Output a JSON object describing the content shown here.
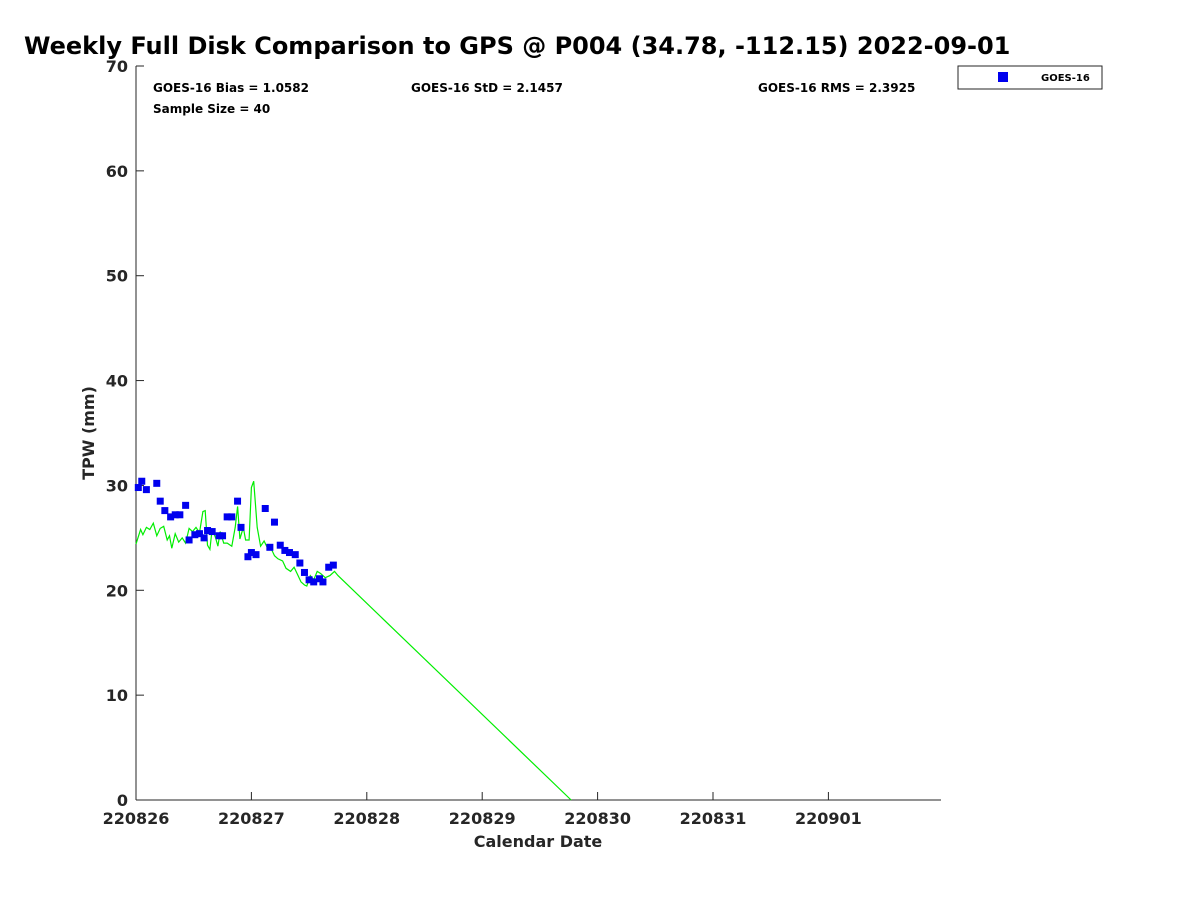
{
  "chart_data": {
    "type": "scatter",
    "title": "Weekly Full Disk Comparison to GPS @ P004 (34.78, -112.15) 2022-09-01",
    "xlabel": "Calendar Date",
    "ylabel": "TPW (mm)",
    "x_unit": "days",
    "xlim": [
      0,
      7
    ],
    "ylim": [
      0,
      70
    ],
    "x_ticks": [
      {
        "value": 0,
        "label": "220826"
      },
      {
        "value": 1,
        "label": "220827"
      },
      {
        "value": 2,
        "label": "220828"
      },
      {
        "value": 3,
        "label": "220829"
      },
      {
        "value": 4,
        "label": "220830"
      },
      {
        "value": 5,
        "label": "220831"
      },
      {
        "value": 6,
        "label": "220901"
      }
    ],
    "y_ticks": [
      0,
      10,
      20,
      30,
      40,
      50,
      60,
      70
    ],
    "grid": false,
    "legend_position": "top-right, outside plot",
    "stats": {
      "bias": "GOES-16 Bias = 1.0582",
      "std": "GOES-16 StD = 2.1457",
      "rms": "GOES-16 RMS = 2.3925",
      "sample": "Sample Size = 40"
    },
    "series": [
      {
        "name": "GOES-16",
        "kind": "scatter",
        "marker": "square",
        "color": "#0000ee",
        "points": [
          [
            0.02,
            29.8
          ],
          [
            0.05,
            30.4
          ],
          [
            0.09,
            29.6
          ],
          [
            0.18,
            30.2
          ],
          [
            0.21,
            28.5
          ],
          [
            0.25,
            27.6
          ],
          [
            0.3,
            27.0
          ],
          [
            0.34,
            27.2
          ],
          [
            0.38,
            27.2
          ],
          [
            0.43,
            28.1
          ],
          [
            0.46,
            24.8
          ],
          [
            0.51,
            25.3
          ],
          [
            0.55,
            25.4
          ],
          [
            0.59,
            25.0
          ],
          [
            0.62,
            25.7
          ],
          [
            0.66,
            25.6
          ],
          [
            0.72,
            25.2
          ],
          [
            0.75,
            25.2
          ],
          [
            0.79,
            27.0
          ],
          [
            0.83,
            27.0
          ],
          [
            0.88,
            28.5
          ],
          [
            0.91,
            26.0
          ],
          [
            0.97,
            23.2
          ],
          [
            1.0,
            23.6
          ],
          [
            1.04,
            23.4
          ],
          [
            1.12,
            27.8
          ],
          [
            1.16,
            24.1
          ],
          [
            1.2,
            26.5
          ],
          [
            1.25,
            24.3
          ],
          [
            1.29,
            23.8
          ],
          [
            1.33,
            23.6
          ],
          [
            1.38,
            23.4
          ],
          [
            1.42,
            22.6
          ],
          [
            1.46,
            21.7
          ],
          [
            1.5,
            21.0
          ],
          [
            1.54,
            20.8
          ],
          [
            1.59,
            21.1
          ],
          [
            1.62,
            20.8
          ],
          [
            1.67,
            22.2
          ],
          [
            1.71,
            22.4
          ]
        ]
      },
      {
        "kind": "line",
        "color": "#00ee00",
        "points": [
          [
            0.0,
            24.4
          ],
          [
            0.04,
            25.8
          ],
          [
            0.06,
            25.3
          ],
          [
            0.09,
            26.0
          ],
          [
            0.12,
            25.8
          ],
          [
            0.15,
            26.4
          ],
          [
            0.18,
            25.2
          ],
          [
            0.21,
            25.9
          ],
          [
            0.24,
            26.1
          ],
          [
            0.27,
            24.8
          ],
          [
            0.29,
            25.2
          ],
          [
            0.31,
            24.0
          ],
          [
            0.34,
            25.4
          ],
          [
            0.37,
            24.6
          ],
          [
            0.4,
            25.0
          ],
          [
            0.43,
            24.5
          ],
          [
            0.46,
            25.9
          ],
          [
            0.49,
            25.6
          ],
          [
            0.52,
            26.0
          ],
          [
            0.55,
            25.5
          ],
          [
            0.58,
            27.5
          ],
          [
            0.6,
            27.6
          ],
          [
            0.62,
            24.3
          ],
          [
            0.64,
            23.9
          ],
          [
            0.66,
            25.9
          ],
          [
            0.69,
            25.0
          ],
          [
            0.71,
            24.2
          ],
          [
            0.73,
            25.6
          ],
          [
            0.76,
            24.5
          ],
          [
            0.79,
            24.5
          ],
          [
            0.83,
            24.2
          ],
          [
            0.86,
            26.0
          ],
          [
            0.88,
            28.0
          ],
          [
            0.9,
            24.9
          ],
          [
            0.93,
            26.0
          ],
          [
            0.95,
            24.8
          ],
          [
            0.98,
            24.8
          ],
          [
            1.0,
            29.8
          ],
          [
            1.02,
            30.4
          ],
          [
            1.05,
            26.0
          ],
          [
            1.08,
            24.2
          ],
          [
            1.11,
            24.7
          ],
          [
            1.14,
            24.0
          ],
          [
            1.17,
            24.0
          ],
          [
            1.2,
            23.3
          ],
          [
            1.23,
            23.0
          ],
          [
            1.27,
            22.8
          ],
          [
            1.3,
            22.1
          ],
          [
            1.34,
            21.8
          ],
          [
            1.37,
            22.2
          ],
          [
            1.4,
            21.5
          ],
          [
            1.43,
            20.8
          ],
          [
            1.46,
            20.5
          ],
          [
            1.48,
            20.4
          ],
          [
            1.51,
            21.4
          ],
          [
            1.54,
            21.0
          ],
          [
            1.57,
            21.8
          ],
          [
            1.6,
            21.6
          ],
          [
            1.64,
            21.2
          ],
          [
            1.68,
            21.4
          ],
          [
            1.72,
            21.8
          ],
          [
            1.75,
            21.4
          ],
          [
            3.77,
            0.0
          ]
        ]
      }
    ]
  }
}
